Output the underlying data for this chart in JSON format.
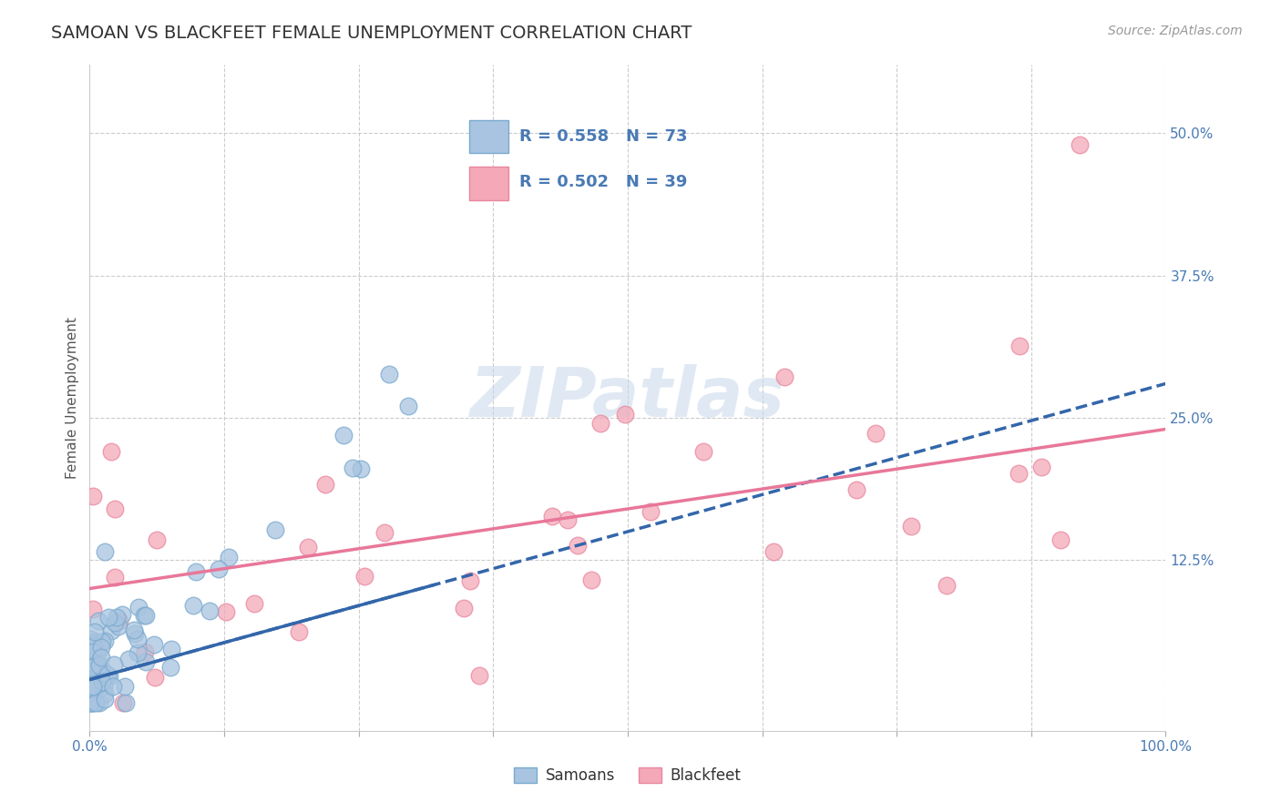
{
  "title": "SAMOAN VS BLACKFEET FEMALE UNEMPLOYMENT CORRELATION CHART",
  "source": "Source: ZipAtlas.com",
  "ylabel": "Female Unemployment",
  "xlim": [
    0.0,
    1.0
  ],
  "ylim": [
    -0.025,
    0.56
  ],
  "ytick_vals": [
    0.125,
    0.25,
    0.375,
    0.5
  ],
  "ytick_labels": [
    "12.5%",
    "25.0%",
    "37.5%",
    "50.0%"
  ],
  "xtick_vals": [
    0.0,
    0.125,
    0.25,
    0.375,
    0.5,
    0.625,
    0.75,
    0.875,
    1.0
  ],
  "xtick_labels": [
    "0.0%",
    "",
    "",
    "",
    "",
    "",
    "",
    "",
    "100.0%"
  ],
  "samoan_color": "#a8c4e0",
  "samoan_edge": "#7aaacf",
  "blackfeet_color": "#f4a8b8",
  "blackfeet_edge": "#e888a0",
  "samoan_line_color": "#3366aa",
  "blackfeet_line_color": "#e8779a",
  "background_color": "#ffffff",
  "grid_color": "#cccccc",
  "watermark": "ZIPatlas",
  "legend_label_samoan": "Samoans",
  "legend_label_blackfeet": "Blackfeet",
  "samoan_r": 0.558,
  "samoan_n": 73,
  "blackfeet_r": 0.502,
  "blackfeet_n": 39,
  "samoan_line_y0": 0.02,
  "samoan_line_y1": 0.28,
  "blackfeet_line_y0": 0.1,
  "blackfeet_line_y1": 0.24,
  "title_fontsize": 14,
  "axis_label_fontsize": 11,
  "tick_fontsize": 11,
  "source_fontsize": 10,
  "legend_fontsize": 13
}
